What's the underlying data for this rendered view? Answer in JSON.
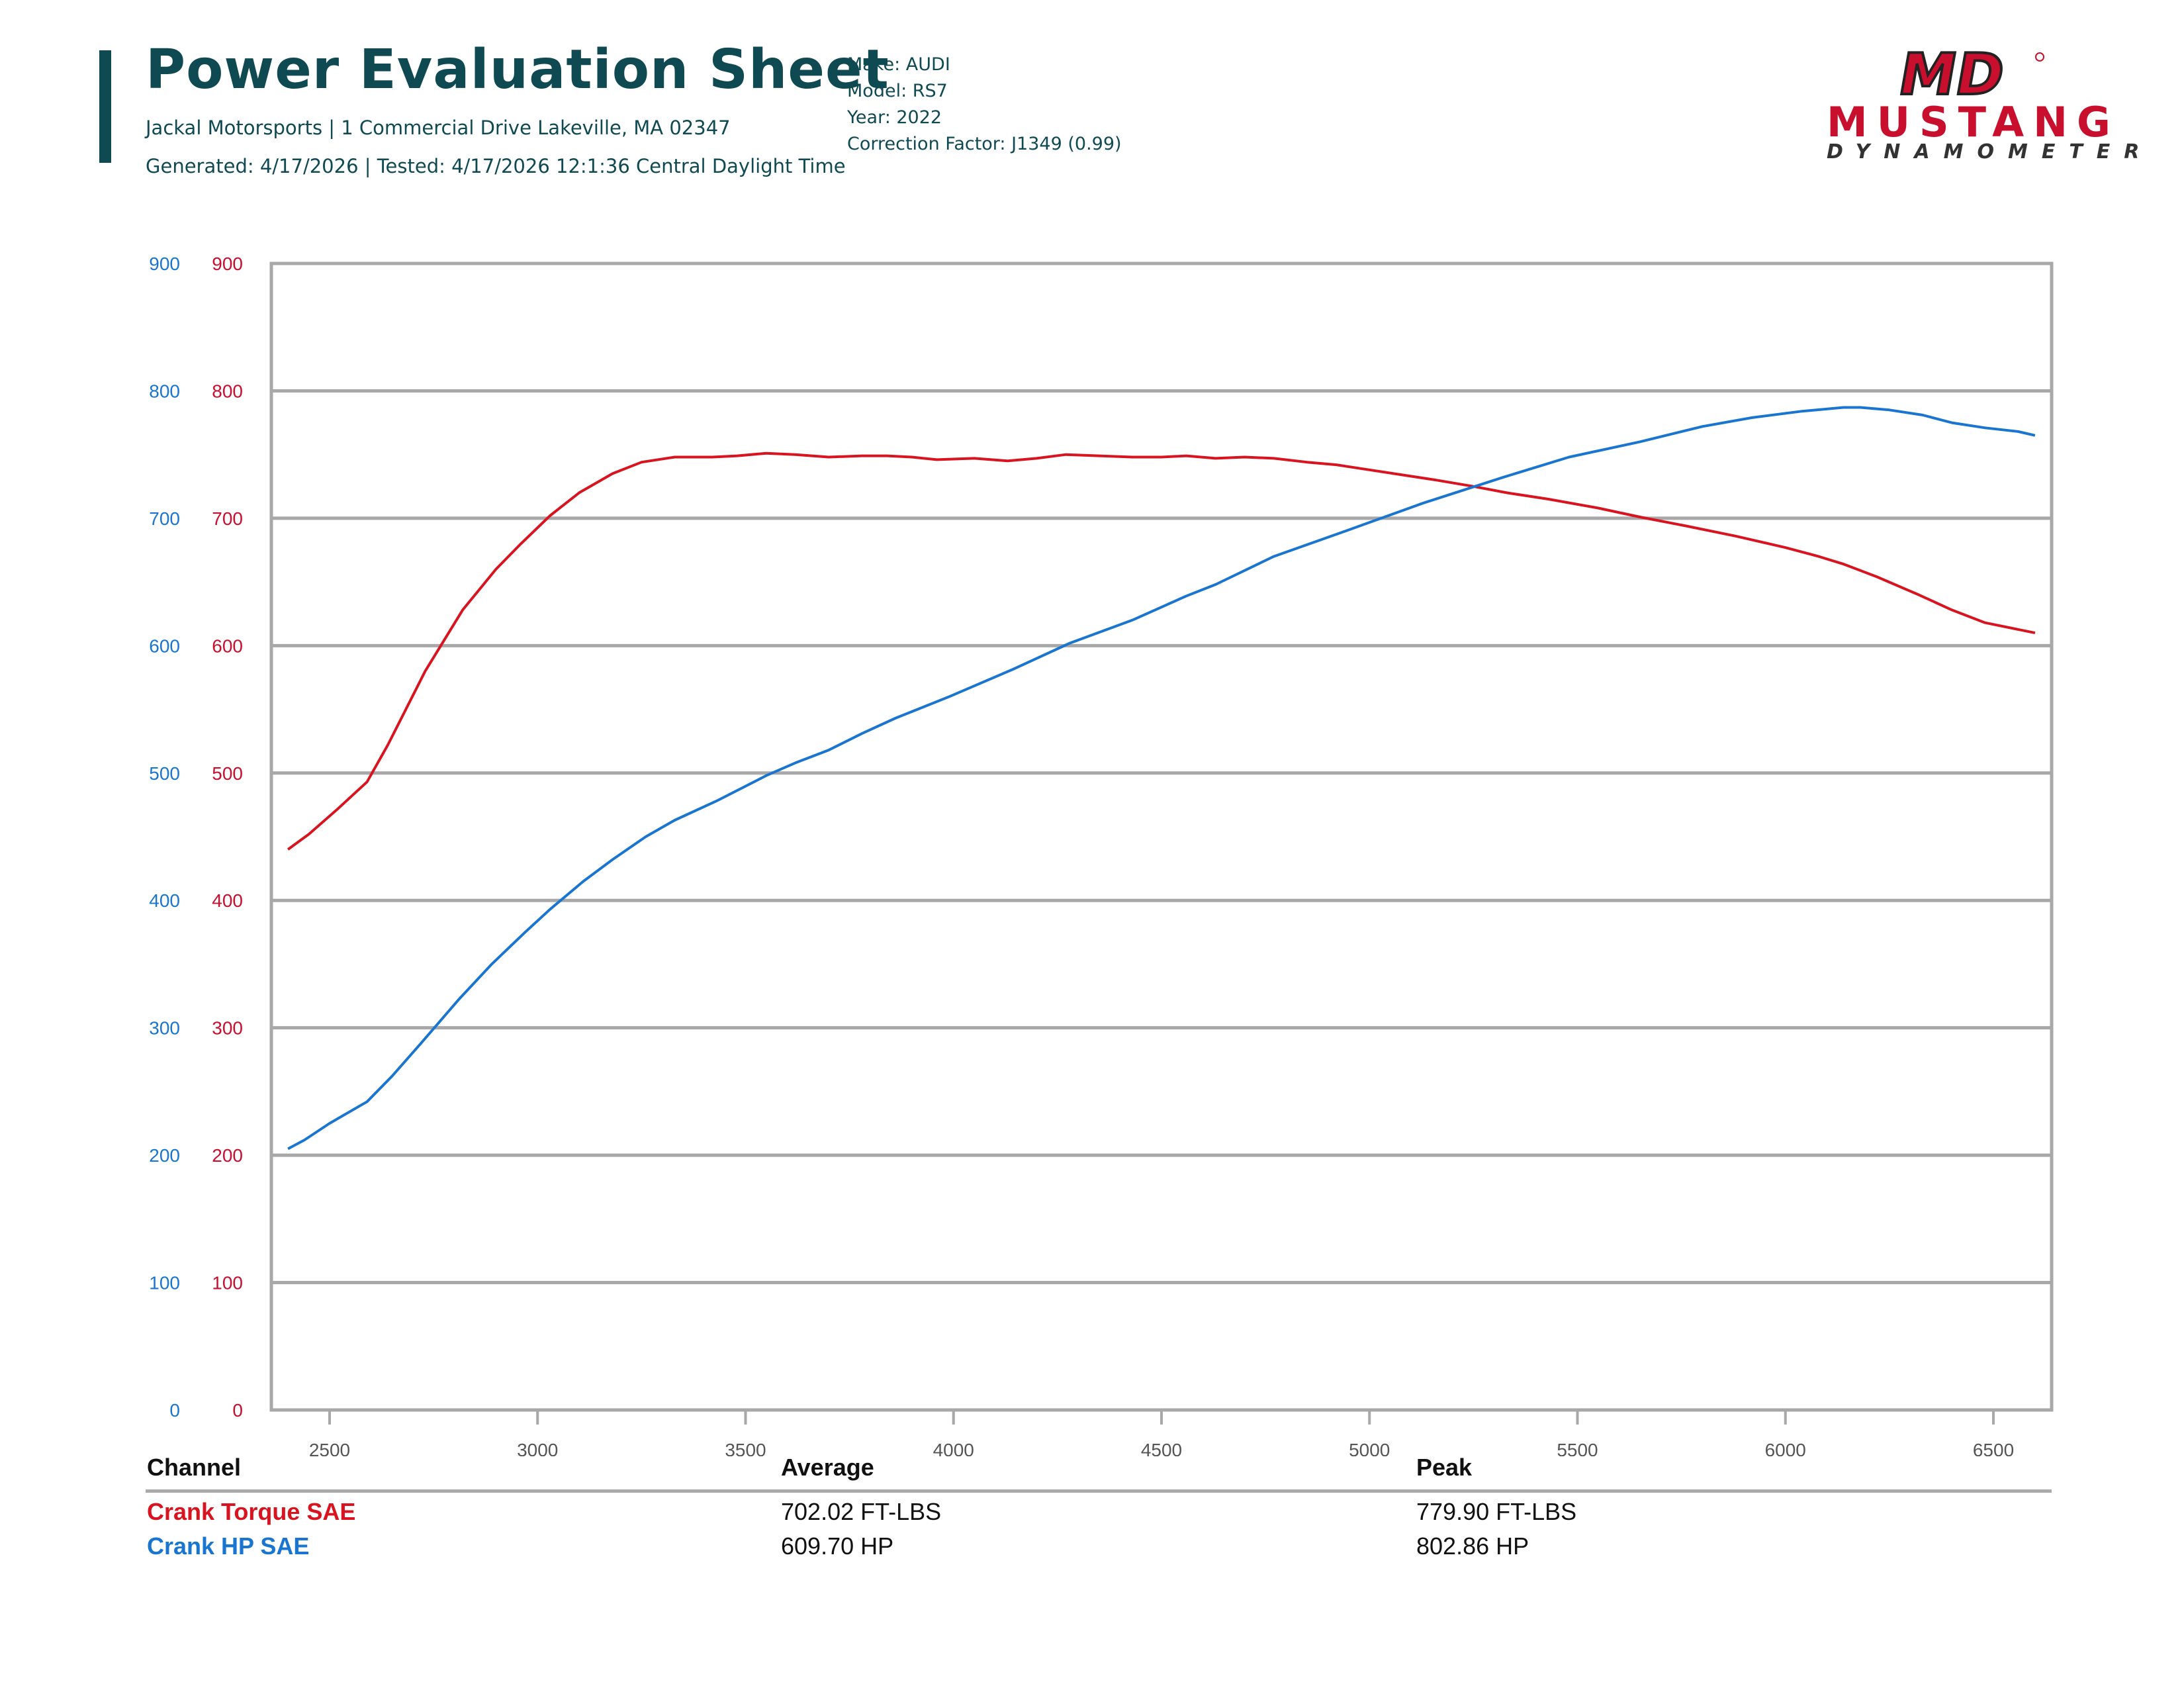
{
  "header": {
    "title": "Power Evaluation Sheet",
    "address": "Jackal Motorsports | 1 Commercial Drive Lakeville, MA 02347",
    "generated": "Generated: 4/17/2026 | Tested: 4/17/2026 12:1:36 Central Daylight Time"
  },
  "vehicle": {
    "make": "Make: AUDI",
    "model": "Model: RS7",
    "year": "Year: 2022",
    "correction": "Correction Factor: J1349 (0.99)"
  },
  "logo": {
    "monogram": "MD",
    "wordmark": "MUSTANG",
    "sub": "DYNAMOMETER",
    "brand_color": "#c8102e"
  },
  "chart_data": {
    "type": "line",
    "xlim": [
      2360,
      6640
    ],
    "ylim": [
      0,
      900
    ],
    "grid": true,
    "x_ticks": [
      2500,
      3000,
      3500,
      4000,
      4500,
      5000,
      5500,
      6000,
      6500
    ],
    "y_ticks": [
      0,
      100,
      200,
      300,
      400,
      500,
      600,
      700,
      800,
      900
    ],
    "left_axis_color": "#1a75d1",
    "right_axis_color": "#c8102e",
    "series": [
      {
        "name": "Crank Torque SAE",
        "color": "#d7141f",
        "x": [
          2400,
          2450,
          2520,
          2590,
          2640,
          2730,
          2820,
          2900,
          2960,
          3030,
          3100,
          3180,
          3250,
          3330,
          3420,
          3480,
          3550,
          3620,
          3700,
          3780,
          3840,
          3900,
          3960,
          4050,
          4130,
          4200,
          4270,
          4350,
          4430,
          4500,
          4560,
          4630,
          4700,
          4770,
          4850,
          4920,
          5000,
          5080,
          5160,
          5250,
          5330,
          5430,
          5550,
          5650,
          5760,
          5880,
          6000,
          6080,
          6140,
          6220,
          6320,
          6400,
          6480,
          6600
        ],
        "y": [
          440,
          452,
          472,
          493,
          522,
          580,
          628,
          660,
          680,
          702,
          720,
          735,
          744,
          748,
          748,
          749,
          751,
          750,
          748,
          749,
          749,
          748,
          746,
          747,
          745,
          747,
          750,
          749,
          748,
          748,
          749,
          747,
          748,
          747,
          744,
          742,
          738,
          734,
          730,
          725,
          720,
          715,
          708,
          701,
          694,
          686,
          677,
          670,
          664,
          654,
          640,
          628,
          618,
          610
        ]
      },
      {
        "name": "Crank HP SAE",
        "color": "#1a75d1",
        "x": [
          2400,
          2440,
          2500,
          2590,
          2650,
          2720,
          2810,
          2890,
          2970,
          3030,
          3110,
          3180,
          3260,
          3330,
          3430,
          3550,
          3620,
          3700,
          3780,
          3860,
          3990,
          4140,
          4280,
          4430,
          4560,
          4630,
          4770,
          4960,
          5130,
          5320,
          5480,
          5650,
          5800,
          5920,
          6040,
          6140,
          6180,
          6250,
          6330,
          6400,
          6480,
          6560,
          6600
        ],
        "y": [
          205,
          212,
          225,
          242,
          262,
          288,
          322,
          350,
          375,
          393,
          415,
          432,
          450,
          463,
          478,
          498,
          508,
          518,
          531,
          543,
          560,
          581,
          602,
          620,
          639,
          648,
          670,
          692,
          712,
          732,
          748,
          760,
          772,
          779,
          784,
          787,
          787,
          785,
          781,
          775,
          771,
          768,
          765
        ]
      }
    ]
  },
  "table": {
    "headers": [
      "Channel",
      "Average",
      "Peak"
    ],
    "rows": [
      {
        "channel": "Crank Torque SAE",
        "average": "702.02 FT-LBS",
        "peak": "779.90 FT-LBS",
        "color": "#d7141f"
      },
      {
        "channel": "Crank HP SAE",
        "average": "609.70 HP",
        "peak": "802.86 HP",
        "color": "#1a75d1"
      }
    ]
  }
}
